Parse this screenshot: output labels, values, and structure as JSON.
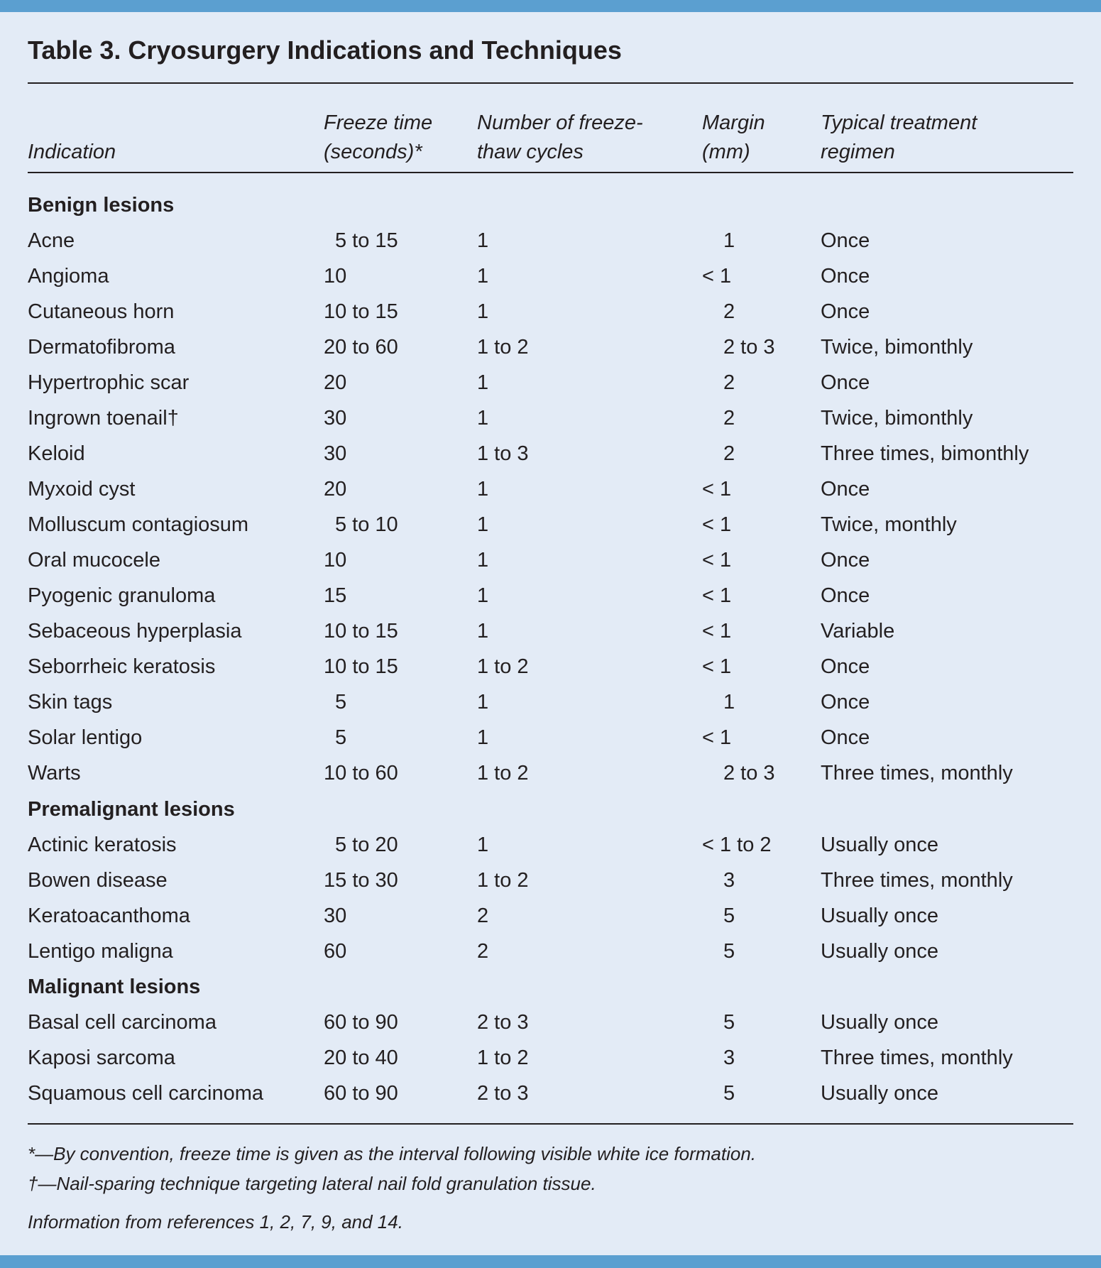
{
  "title": "Table 3. Cryosurgery Indications and Techniques",
  "table": {
    "headers": [
      [
        "Indication"
      ],
      [
        "Freeze time",
        "(seconds)*"
      ],
      [
        "Number of freeze-",
        "thaw cycles"
      ],
      [
        "Margin",
        "(mm)"
      ],
      [
        "Typical treatment",
        "regimen"
      ]
    ],
    "sections": [
      {
        "heading": "Benign lesions",
        "rows": [
          [
            "Acne",
            "5 to 15",
            "1",
            "1",
            "Once"
          ],
          [
            "Angioma",
            "10",
            "1",
            "< 1",
            "Once"
          ],
          [
            "Cutaneous horn",
            "10 to 15",
            "1",
            "2",
            "Once"
          ],
          [
            "Dermatofibroma",
            "20 to 60",
            "1 to 2",
            "2 to 3",
            "Twice, bimonthly"
          ],
          [
            "Hypertrophic scar",
            "20",
            "1",
            "2",
            "Once"
          ],
          [
            "Ingrown toenail†",
            "30",
            "1",
            "2",
            "Twice, bimonthly"
          ],
          [
            "Keloid",
            "30",
            "1 to 3",
            "2",
            "Three times, bimonthly"
          ],
          [
            "Myxoid cyst",
            "20",
            "1",
            "< 1",
            "Once"
          ],
          [
            "Molluscum contagiosum",
            "5 to 10",
            "1",
            "< 1",
            "Twice, monthly"
          ],
          [
            "Oral mucocele",
            "10",
            "1",
            "< 1",
            "Once"
          ],
          [
            "Pyogenic granuloma",
            "15",
            "1",
            "< 1",
            "Once"
          ],
          [
            "Sebaceous hyperplasia",
            "10 to 15",
            "1",
            "< 1",
            "Variable"
          ],
          [
            "Seborrheic keratosis",
            "10 to 15",
            "1 to 2",
            "< 1",
            "Once"
          ],
          [
            "Skin tags",
            "5",
            "1",
            "1",
            "Once"
          ],
          [
            "Solar lentigo",
            "5",
            "1",
            "< 1",
            "Once"
          ],
          [
            "Warts",
            "10 to 60",
            "1 to 2",
            "2 to 3",
            "Three times, monthly"
          ]
        ]
      },
      {
        "heading": "Premalignant lesions",
        "rows": [
          [
            "Actinic keratosis",
            "5 to 20",
            "1",
            "< 1 to 2",
            "Usually once"
          ],
          [
            "Bowen disease",
            "15 to 30",
            "1 to 2",
            "3",
            "Three times, monthly"
          ],
          [
            "Keratoacanthoma",
            "30",
            "2",
            "5",
            "Usually once"
          ],
          [
            "Lentigo maligna",
            "60",
            "2",
            "5",
            "Usually once"
          ]
        ]
      },
      {
        "heading": "Malignant lesions",
        "rows": [
          [
            "Basal cell carcinoma",
            "60 to 90",
            "2 to 3",
            "5",
            "Usually once"
          ],
          [
            "Kaposi sarcoma",
            "20 to 40",
            "1 to 2",
            "3",
            "Three times, monthly"
          ],
          [
            "Squamous cell carcinoma",
            "60 to 90",
            "2 to 3",
            "5",
            "Usually once"
          ]
        ]
      }
    ]
  },
  "footnotes": [
    "*—By convention, freeze time is given as the interval following visible white ice formation.",
    "†—Nail-sparing technique targeting lateral nail fold granulation tissue."
  ],
  "source": "Information from references 1, 2, 7, 9, and 14."
}
